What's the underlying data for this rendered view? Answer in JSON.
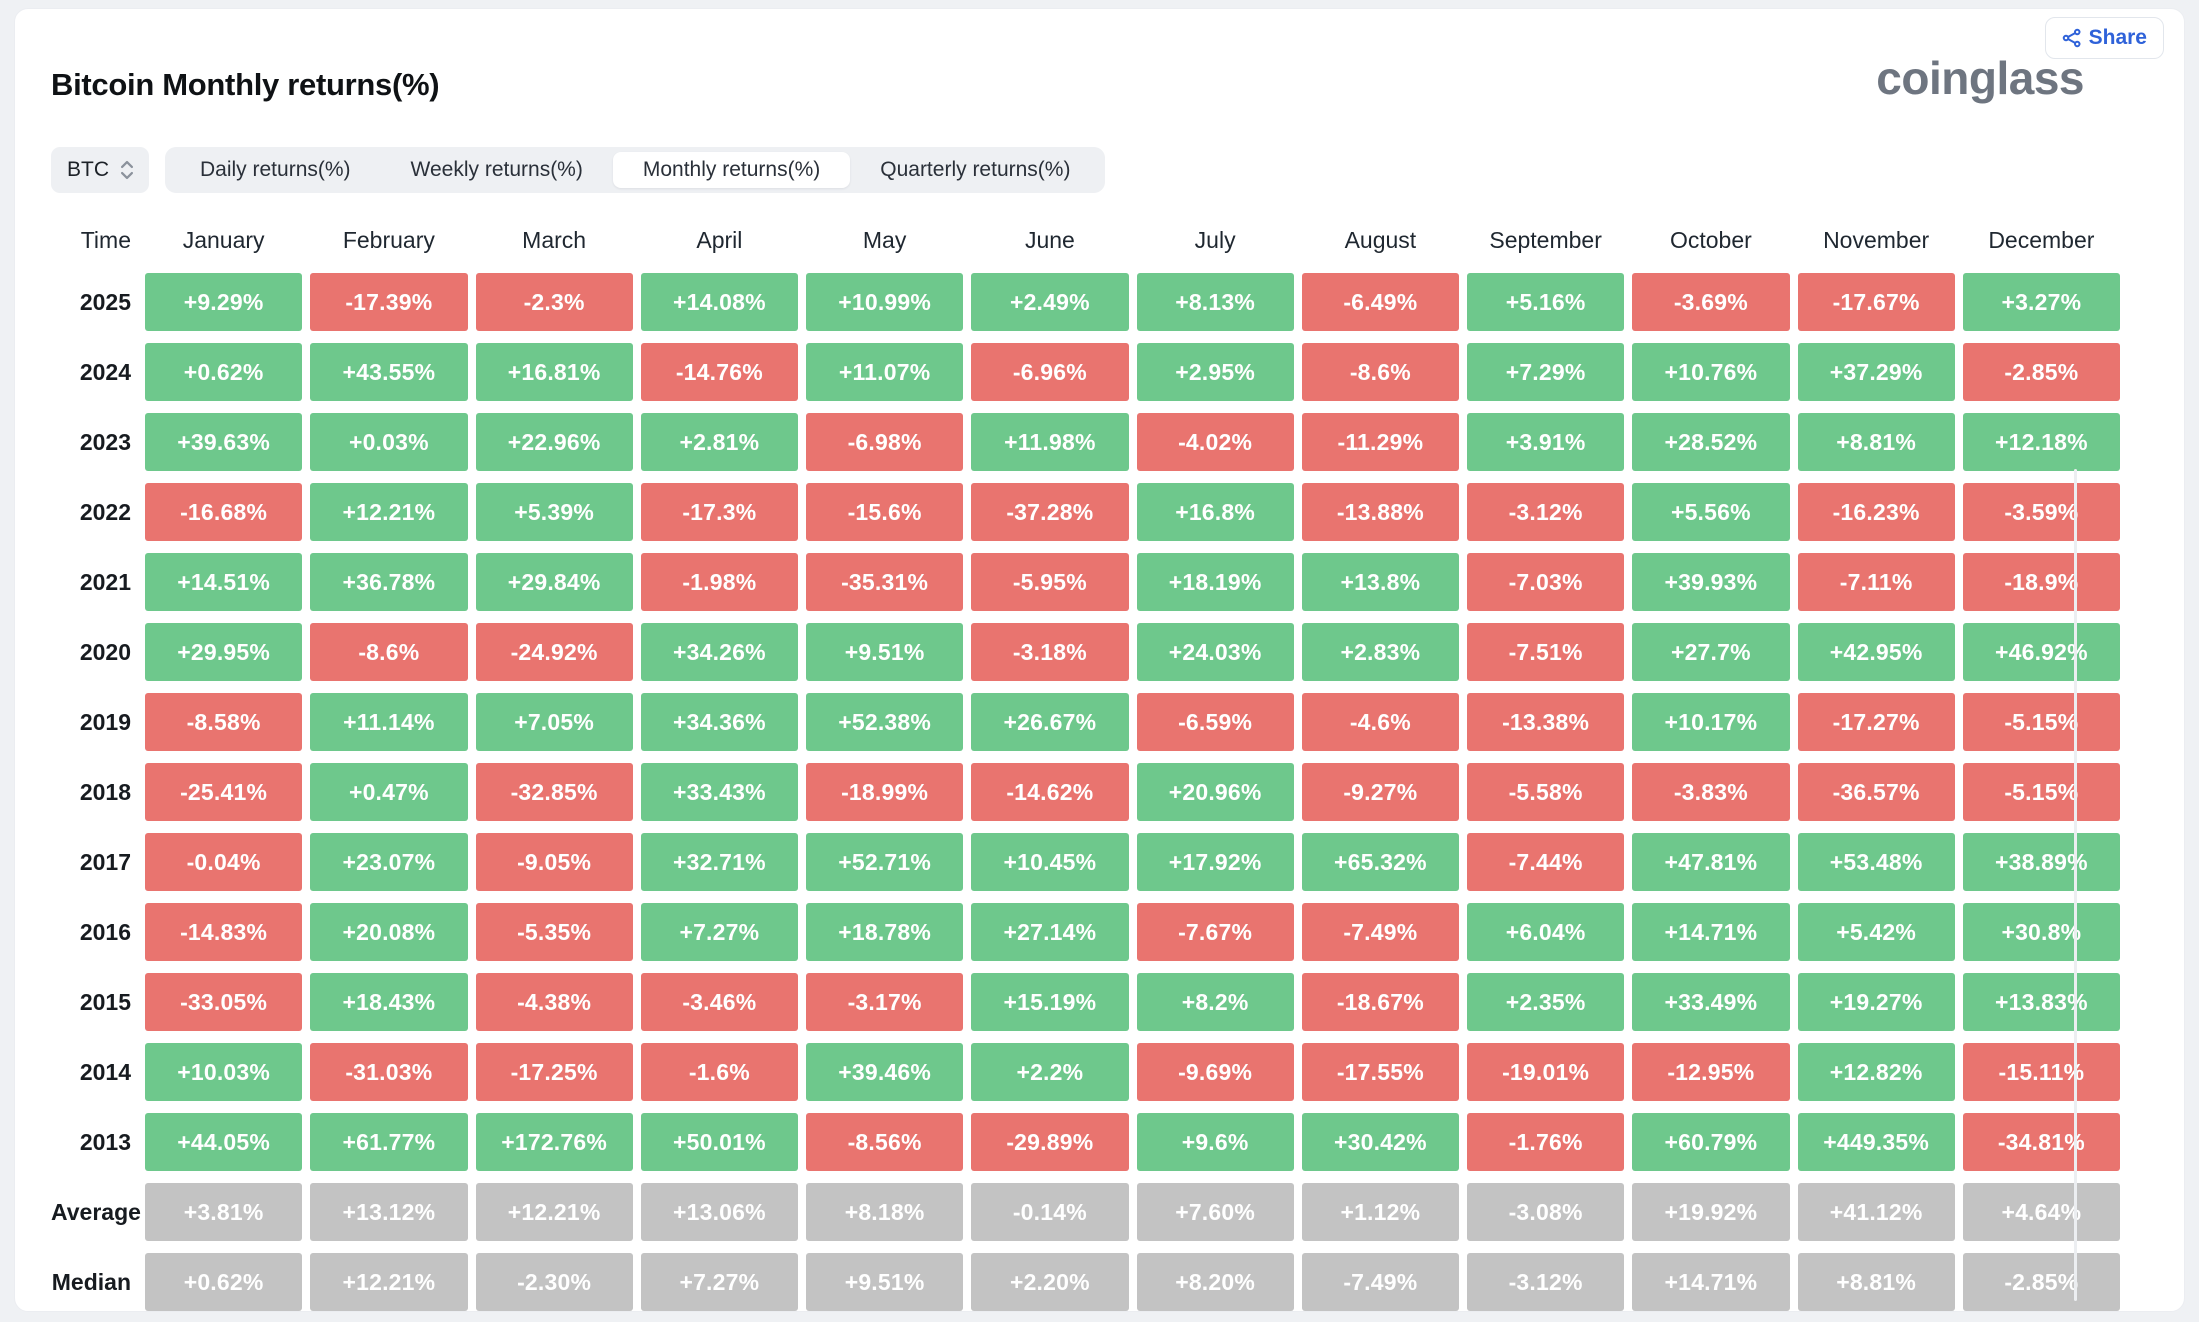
{
  "page": {
    "background": "#eff1f4",
    "card_background": "#ffffff"
  },
  "header": {
    "title": "Bitcoin Monthly returns(%)",
    "logo_text": "coinglass",
    "share_label": "Share",
    "share_color": "#2f62d9"
  },
  "controls": {
    "symbol_select": {
      "value": "BTC"
    },
    "tabs": [
      {
        "label": "Daily returns(%)",
        "active": false
      },
      {
        "label": "Weekly returns(%)",
        "active": false
      },
      {
        "label": "Monthly returns(%)",
        "active": true
      },
      {
        "label": "Quarterly returns(%)",
        "active": false
      }
    ]
  },
  "table": {
    "time_header": "Time",
    "months": [
      "January",
      "February",
      "March",
      "April",
      "May",
      "June",
      "July",
      "August",
      "September",
      "October",
      "November",
      "December"
    ],
    "colors": {
      "positive": "#6ec88c",
      "negative": "#e9746f",
      "summary": "#c3c3c3",
      "cell_text": "#ffffff"
    },
    "rows": [
      {
        "label": "2025",
        "type": "year",
        "cells": [
          "+9.29%",
          "-17.39%",
          "-2.3%",
          "+14.08%",
          "+10.99%",
          "+2.49%",
          "+8.13%",
          "-6.49%",
          "+5.16%",
          "-3.69%",
          "-17.67%",
          "+3.27%"
        ]
      },
      {
        "label": "2024",
        "type": "year",
        "cells": [
          "+0.62%",
          "+43.55%",
          "+16.81%",
          "-14.76%",
          "+11.07%",
          "-6.96%",
          "+2.95%",
          "-8.6%",
          "+7.29%",
          "+10.76%",
          "+37.29%",
          "-2.85%"
        ]
      },
      {
        "label": "2023",
        "type": "year",
        "cells": [
          "+39.63%",
          "+0.03%",
          "+22.96%",
          "+2.81%",
          "-6.98%",
          "+11.98%",
          "-4.02%",
          "-11.29%",
          "+3.91%",
          "+28.52%",
          "+8.81%",
          "+12.18%"
        ]
      },
      {
        "label": "2022",
        "type": "year",
        "cells": [
          "-16.68%",
          "+12.21%",
          "+5.39%",
          "-17.3%",
          "-15.6%",
          "-37.28%",
          "+16.8%",
          "-13.88%",
          "-3.12%",
          "+5.56%",
          "-16.23%",
          "-3.59%"
        ]
      },
      {
        "label": "2021",
        "type": "year",
        "cells": [
          "+14.51%",
          "+36.78%",
          "+29.84%",
          "-1.98%",
          "-35.31%",
          "-5.95%",
          "+18.19%",
          "+13.8%",
          "-7.03%",
          "+39.93%",
          "-7.11%",
          "-18.9%"
        ]
      },
      {
        "label": "2020",
        "type": "year",
        "cells": [
          "+29.95%",
          "-8.6%",
          "-24.92%",
          "+34.26%",
          "+9.51%",
          "-3.18%",
          "+24.03%",
          "+2.83%",
          "-7.51%",
          "+27.7%",
          "+42.95%",
          "+46.92%"
        ]
      },
      {
        "label": "2019",
        "type": "year",
        "cells": [
          "-8.58%",
          "+11.14%",
          "+7.05%",
          "+34.36%",
          "+52.38%",
          "+26.67%",
          "-6.59%",
          "-4.6%",
          "-13.38%",
          "+10.17%",
          "-17.27%",
          "-5.15%"
        ]
      },
      {
        "label": "2018",
        "type": "year",
        "cells": [
          "-25.41%",
          "+0.47%",
          "-32.85%",
          "+33.43%",
          "-18.99%",
          "-14.62%",
          "+20.96%",
          "-9.27%",
          "-5.58%",
          "-3.83%",
          "-36.57%",
          "-5.15%"
        ]
      },
      {
        "label": "2017",
        "type": "year",
        "cells": [
          "-0.04%",
          "+23.07%",
          "-9.05%",
          "+32.71%",
          "+52.71%",
          "+10.45%",
          "+17.92%",
          "+65.32%",
          "-7.44%",
          "+47.81%",
          "+53.48%",
          "+38.89%"
        ]
      },
      {
        "label": "2016",
        "type": "year",
        "cells": [
          "-14.83%",
          "+20.08%",
          "-5.35%",
          "+7.27%",
          "+18.78%",
          "+27.14%",
          "-7.67%",
          "-7.49%",
          "+6.04%",
          "+14.71%",
          "+5.42%",
          "+30.8%"
        ]
      },
      {
        "label": "2015",
        "type": "year",
        "cells": [
          "-33.05%",
          "+18.43%",
          "-4.38%",
          "-3.46%",
          "-3.17%",
          "+15.19%",
          "+8.2%",
          "-18.67%",
          "+2.35%",
          "+33.49%",
          "+19.27%",
          "+13.83%"
        ]
      },
      {
        "label": "2014",
        "type": "year",
        "cells": [
          "+10.03%",
          "-31.03%",
          "-17.25%",
          "-1.6%",
          "+39.46%",
          "+2.2%",
          "-9.69%",
          "-17.55%",
          "-19.01%",
          "-12.95%",
          "+12.82%",
          "-15.11%"
        ]
      },
      {
        "label": "2013",
        "type": "year",
        "cells": [
          "+44.05%",
          "+61.77%",
          "+172.76%",
          "+50.01%",
          "-8.56%",
          "-29.89%",
          "+9.6%",
          "+30.42%",
          "-1.76%",
          "+60.79%",
          "+449.35%",
          "-34.81%"
        ]
      },
      {
        "label": "Average",
        "type": "summary",
        "cells": [
          "+3.81%",
          "+13.12%",
          "+12.21%",
          "+13.06%",
          "+8.18%",
          "-0.14%",
          "+7.60%",
          "+1.12%",
          "-3.08%",
          "+19.92%",
          "+41.12%",
          "+4.64%"
        ]
      },
      {
        "label": "Median",
        "type": "summary",
        "cells": [
          "+0.62%",
          "+12.21%",
          "-2.30%",
          "+7.27%",
          "+9.51%",
          "+2.20%",
          "+8.20%",
          "-7.49%",
          "-3.12%",
          "+14.71%",
          "+8.81%",
          "-2.85%"
        ]
      }
    ]
  },
  "chart_data": {
    "type": "heatmap",
    "title": "Bitcoin Monthly returns(%)",
    "unit": "%",
    "x": [
      "January",
      "February",
      "March",
      "April",
      "May",
      "June",
      "July",
      "August",
      "September",
      "October",
      "November",
      "December"
    ],
    "series": [
      {
        "name": "2025",
        "values": [
          9.29,
          -17.39,
          -2.3,
          14.08,
          10.99,
          2.49,
          8.13,
          -6.49,
          5.16,
          -3.69,
          -17.67,
          3.27
        ]
      },
      {
        "name": "2024",
        "values": [
          0.62,
          43.55,
          16.81,
          -14.76,
          11.07,
          -6.96,
          2.95,
          -8.6,
          7.29,
          10.76,
          37.29,
          -2.85
        ]
      },
      {
        "name": "2023",
        "values": [
          39.63,
          0.03,
          22.96,
          2.81,
          -6.98,
          11.98,
          -4.02,
          -11.29,
          3.91,
          28.52,
          8.81,
          12.18
        ]
      },
      {
        "name": "2022",
        "values": [
          -16.68,
          12.21,
          5.39,
          -17.3,
          -15.6,
          -37.28,
          16.8,
          -13.88,
          -3.12,
          5.56,
          -16.23,
          -3.59
        ]
      },
      {
        "name": "2021",
        "values": [
          14.51,
          36.78,
          29.84,
          -1.98,
          -35.31,
          -5.95,
          18.19,
          13.8,
          -7.03,
          39.93,
          -7.11,
          -18.9
        ]
      },
      {
        "name": "2020",
        "values": [
          29.95,
          -8.6,
          -24.92,
          34.26,
          9.51,
          -3.18,
          24.03,
          2.83,
          -7.51,
          27.7,
          42.95,
          46.92
        ]
      },
      {
        "name": "2019",
        "values": [
          -8.58,
          11.14,
          7.05,
          34.36,
          52.38,
          26.67,
          -6.59,
          -4.6,
          -13.38,
          10.17,
          -17.27,
          -5.15
        ]
      },
      {
        "name": "2018",
        "values": [
          -25.41,
          0.47,
          -32.85,
          33.43,
          -18.99,
          -14.62,
          20.96,
          -9.27,
          -5.58,
          -3.83,
          -36.57,
          -5.15
        ]
      },
      {
        "name": "2017",
        "values": [
          -0.04,
          23.07,
          -9.05,
          32.71,
          52.71,
          10.45,
          17.92,
          65.32,
          -7.44,
          47.81,
          53.48,
          38.89
        ]
      },
      {
        "name": "2016",
        "values": [
          -14.83,
          20.08,
          -5.35,
          7.27,
          18.78,
          27.14,
          -7.67,
          -7.49,
          6.04,
          14.71,
          5.42,
          30.8
        ]
      },
      {
        "name": "2015",
        "values": [
          -33.05,
          18.43,
          -4.38,
          -3.46,
          -3.17,
          15.19,
          8.2,
          -18.67,
          2.35,
          33.49,
          19.27,
          13.83
        ]
      },
      {
        "name": "2014",
        "values": [
          10.03,
          -31.03,
          -17.25,
          -1.6,
          39.46,
          2.2,
          -9.69,
          -17.55,
          -19.01,
          -12.95,
          12.82,
          -15.11
        ]
      },
      {
        "name": "2013",
        "values": [
          44.05,
          61.77,
          172.76,
          50.01,
          -8.56,
          -29.89,
          9.6,
          30.42,
          -1.76,
          60.79,
          449.35,
          -34.81
        ]
      },
      {
        "name": "Average",
        "values": [
          3.81,
          13.12,
          12.21,
          13.06,
          8.18,
          -0.14,
          7.6,
          1.12,
          -3.08,
          19.92,
          41.12,
          4.64
        ]
      },
      {
        "name": "Median",
        "values": [
          0.62,
          12.21,
          -2.3,
          7.27,
          9.51,
          2.2,
          8.2,
          -7.49,
          -3.12,
          14.71,
          8.81,
          -2.85
        ]
      }
    ],
    "color_coding": {
      "positive": "green",
      "negative": "red",
      "summary_rows": "gray"
    },
    "legend": "none",
    "grid": "off"
  }
}
